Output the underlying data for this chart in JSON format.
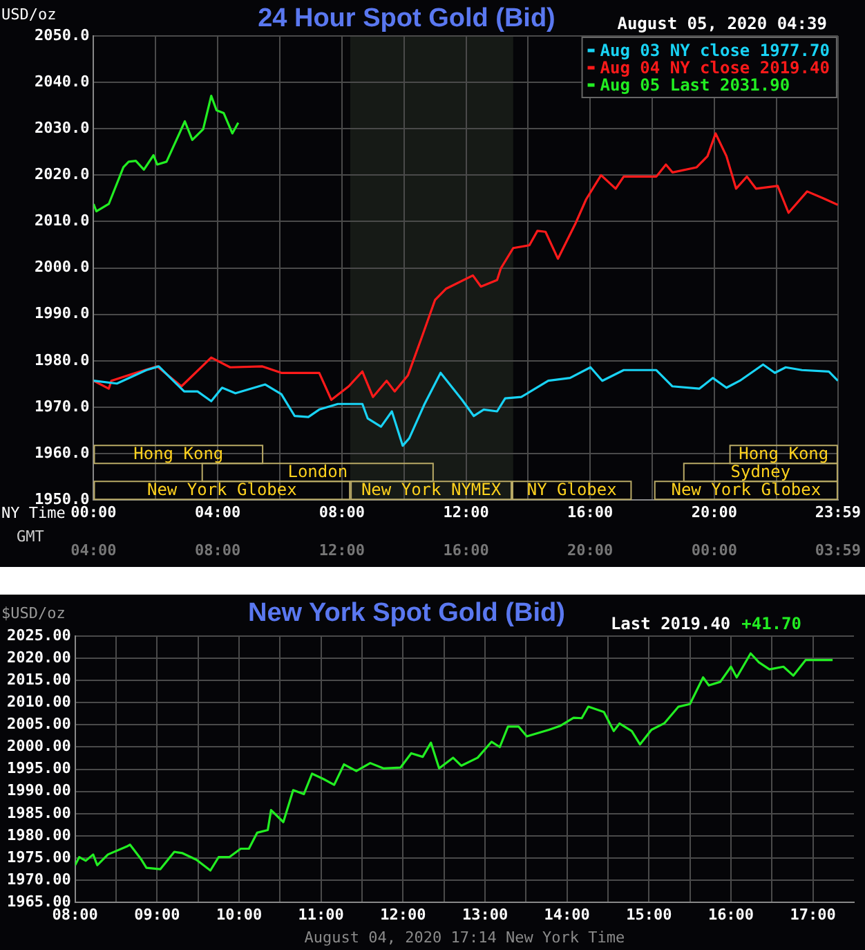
{
  "chart_data": [
    {
      "type": "line",
      "title": "24 Hour Spot Gold (Bid)",
      "subtitle": "August 05, 2020 04:39",
      "ylabel": "USD/oz",
      "xlabel": "NY Time",
      "x2label": "GMT",
      "xlim": [
        0,
        23.98333
      ],
      "xticks": [
        {
          "value": 0,
          "label": "00:00"
        },
        {
          "value": 2,
          "label": null
        },
        {
          "value": 4,
          "label": "04:00"
        },
        {
          "value": 6,
          "label": null
        },
        {
          "value": 8,
          "label": "08:00"
        },
        {
          "value": 10,
          "label": null
        },
        {
          "value": 12,
          "label": "12:00"
        },
        {
          "value": 14,
          "label": null
        },
        {
          "value": 16,
          "label": "16:00"
        },
        {
          "value": 18,
          "label": null
        },
        {
          "value": 20,
          "label": "20:00"
        },
        {
          "value": 22,
          "label": null
        },
        {
          "value": 23.98333,
          "label": "23:59"
        }
      ],
      "x2lim": [
        "2020-08-04T04:00",
        "2020-08-05T03:59"
      ],
      "x2ticks": [
        {
          "value": "2020-08-04T04:00",
          "label": "04:00"
        },
        {
          "value": "2020-08-04T08:00",
          "label": "08:00"
        },
        {
          "value": "2020-08-04T12:00",
          "label": "12:00"
        },
        {
          "value": "2020-08-04T16:00",
          "label": "16:00"
        },
        {
          "value": "2020-08-04T20:00",
          "label": "20:00"
        },
        {
          "value": "2020-08-05T00:00",
          "label": "00:00"
        },
        {
          "value": "2020-08-05T03:59",
          "label": "03:59"
        }
      ],
      "ylim": [
        1950,
        2050
      ],
      "yticks": [
        {
          "value": 1950,
          "label": "1950.0"
        },
        {
          "value": 1960,
          "label": "1960.0"
        },
        {
          "value": 1970,
          "label": "1970.0"
        },
        {
          "value": 1980,
          "label": "1980.0"
        },
        {
          "value": 1990,
          "label": "1990.0"
        },
        {
          "value": 2000,
          "label": "2000.0"
        },
        {
          "value": 2010,
          "label": "2010.0"
        },
        {
          "value": 2020,
          "label": "2020.0"
        },
        {
          "value": 2030,
          "label": "2030.0"
        },
        {
          "value": 2040,
          "label": "2040.0"
        },
        {
          "value": 2050,
          "label": "2050.0"
        }
      ],
      "grid": true,
      "legend": "top right",
      "marker": "none",
      "line_style": "solid",
      "bands": [
        {
          "axis": "x",
          "from": 8.27,
          "to": 13.52,
          "color": "#161a16"
        }
      ],
      "annotations": [
        "Hong Kong",
        "London",
        "New York Globex",
        "New York NYMEX",
        "NY Globex",
        "New York Globex",
        "Sydney",
        "Hong Kong"
      ],
      "series": [
        {
          "name": "Aug 03 NY close 1977.70",
          "color": "#19d3f5",
          "x": [
            0,
            0.75,
            1.7,
            2.1,
            2.92,
            3.35,
            3.79,
            4.14,
            4.57,
            5.53,
            6.05,
            6.48,
            6.92,
            7.27,
            7.87,
            8.66,
            8.83,
            9.26,
            9.61,
            9.96,
            10.17,
            10.65,
            11.18,
            11.87,
            12.25,
            12.57,
            13,
            13.26,
            13.78,
            14.65,
            15.35,
            16.01,
            16.39,
            17.08,
            18.13,
            18.65,
            19.52,
            19.95,
            20.39,
            20.82,
            21.57,
            21.95,
            22.3,
            22.82,
            23.69,
            23.98
          ],
          "values": [
            1975.7,
            1975.1,
            1978,
            1978.8,
            1973.4,
            1973.4,
            1971.3,
            1974.2,
            1973,
            1974.9,
            1972.8,
            1968.1,
            1967.9,
            1969.5,
            1970.7,
            1970.7,
            1967.6,
            1965.8,
            1969.1,
            1961.7,
            1963.3,
            1970.5,
            1977.4,
            1971.6,
            1968.1,
            1969.5,
            1969.1,
            1971.9,
            1972.2,
            1975.7,
            1976.3,
            1978.6,
            1975.7,
            1978,
            1978,
            1974.5,
            1974,
            1976.3,
            1974.2,
            1975.7,
            1979.2,
            1977.4,
            1978.6,
            1978,
            1977.7,
            1975.7
          ]
        },
        {
          "name": "Aug 04 NY close 2019.40",
          "color": "#ff1a1a",
          "x": [
            0,
            0.49,
            0.57,
            1.27,
            2.05,
            2.83,
            3.79,
            4.4,
            5.44,
            6.05,
            7.27,
            7.66,
            8.22,
            8.66,
            9,
            9.44,
            9.7,
            10.13,
            10.57,
            11,
            11.35,
            12.22,
            12.48,
            13,
            13.12,
            13.52,
            14.04,
            14.3,
            14.56,
            14.96,
            15.52,
            15.87,
            16.35,
            16.82,
            17.08,
            18.13,
            18.44,
            18.65,
            19.43,
            19.78,
            20.04,
            20.39,
            20.7,
            21.05,
            21.34,
            22.04,
            22.39,
            22.99,
            23.52,
            23.98
          ],
          "values": [
            1975.7,
            1974,
            1975.7,
            1977.2,
            1978.8,
            1974.5,
            1980.7,
            1978.6,
            1978.8,
            1977.4,
            1977.4,
            1971.6,
            1974.5,
            1977.7,
            1972.2,
            1975.7,
            1973.4,
            1976.9,
            1985,
            1993.1,
            1995.5,
            1998.4,
            1996,
            1997.4,
            1999.9,
            2004.3,
            2004.9,
            2008,
            2007.8,
            2002,
            2009.5,
            2014.8,
            2020,
            2017.1,
            2019.7,
            2019.7,
            2022.3,
            2020.6,
            2021.7,
            2024.1,
            2029,
            2024.1,
            2017.1,
            2019.7,
            2017.1,
            2017.7,
            2011.9,
            2016.5,
            2015,
            2013.6
          ]
        },
        {
          "name": "Aug 05 Last 2031.90",
          "color": "#22ee22",
          "x": [
            0,
            0.09,
            0.49,
            0.96,
            1.13,
            1.36,
            1.62,
            1.93,
            2.05,
            2.35,
            2.94,
            3.18,
            3.53,
            3.79,
            3.96,
            4.19,
            4.47,
            4.66
          ],
          "values": [
            2013.8,
            2012.2,
            2013.8,
            2021.7,
            2022.9,
            2023.1,
            2021.2,
            2024.3,
            2022.3,
            2022.9,
            2031.6,
            2027.6,
            2029.9,
            2037.1,
            2034,
            2033.4,
            2029,
            2031.3
          ]
        }
      ]
    },
    {
      "type": "line",
      "title": "New York Spot Gold (Bid)",
      "ylabel": "$USD/oz",
      "xlabel": "August 04, 2020 17:14 New York Time",
      "annotations": [
        "Last 2019.40",
        "+41.70"
      ],
      "xlim": [
        8,
        17.5
      ],
      "xticks": [
        {
          "value": 8,
          "label": "08:00"
        },
        {
          "value": 8.5,
          "label": null
        },
        {
          "value": 9,
          "label": "09:00"
        },
        {
          "value": 9.5,
          "label": null
        },
        {
          "value": 10,
          "label": "10:00"
        },
        {
          "value": 10.5,
          "label": null
        },
        {
          "value": 11,
          "label": "11:00"
        },
        {
          "value": 11.5,
          "label": null
        },
        {
          "value": 12,
          "label": "12:00"
        },
        {
          "value": 12.5,
          "label": null
        },
        {
          "value": 13,
          "label": "13:00"
        },
        {
          "value": 13.5,
          "label": null
        },
        {
          "value": 14,
          "label": "14:00"
        },
        {
          "value": 14.5,
          "label": null
        },
        {
          "value": 15,
          "label": "15:00"
        },
        {
          "value": 15.5,
          "label": null
        },
        {
          "value": 16,
          "label": "16:00"
        },
        {
          "value": 16.5,
          "label": null
        },
        {
          "value": 17,
          "label": "17:00"
        }
      ],
      "ylim": [
        1965,
        2025
      ],
      "yticks": [
        {
          "value": 1965,
          "label": "1965.00"
        },
        {
          "value": 1970,
          "label": "1970.00"
        },
        {
          "value": 1975,
          "label": "1975.00"
        },
        {
          "value": 1980,
          "label": "1980.00"
        },
        {
          "value": 1985,
          "label": "1985.00"
        },
        {
          "value": 1990,
          "label": "1990.00"
        },
        {
          "value": 1995,
          "label": "1995.00"
        },
        {
          "value": 2000,
          "label": "2000.00"
        },
        {
          "value": 2005,
          "label": "2005.00"
        },
        {
          "value": 2010,
          "label": "2010.00"
        },
        {
          "value": 2015,
          "label": "2015.00"
        },
        {
          "value": 2020,
          "label": "2020.00"
        },
        {
          "value": 2025,
          "label": "2025.00"
        }
      ],
      "grid": true,
      "marker": "none",
      "line_style": "solid",
      "series": [
        {
          "color": "#22ee22",
          "x": [
            8,
            8.05,
            8.13,
            8.22,
            8.27,
            8.4,
            8.64,
            8.67,
            8.81,
            8.87,
            9.04,
            9.21,
            9.31,
            9.48,
            9.65,
            9.75,
            9.88,
            10.02,
            10.12,
            10.22,
            10.35,
            10.39,
            10.54,
            10.66,
            10.79,
            10.89,
            11.03,
            11.16,
            11.28,
            11.43,
            11.6,
            11.76,
            11.97,
            12.1,
            12.24,
            12.34,
            12.44,
            12.61,
            12.71,
            12.91,
            13.08,
            13.18,
            13.28,
            13.41,
            13.51,
            13.78,
            13.92,
            14.08,
            14.18,
            14.26,
            14.45,
            14.57,
            14.64,
            14.79,
            14.89,
            15.03,
            15.19,
            15.36,
            15.5,
            15.66,
            15.73,
            15.87,
            16,
            16.07,
            16.24,
            16.34,
            16.47,
            16.64,
            16.76,
            16.91,
            17.01,
            17.24
          ],
          "values": [
            1973.4,
            1975.2,
            1974.4,
            1975.8,
            1973.4,
            1975.8,
            1977.7,
            1978,
            1974.6,
            1972.8,
            1972.5,
            1976.4,
            1976.1,
            1974.6,
            1972.2,
            1975.2,
            1975.2,
            1977.1,
            1977.1,
            1980.7,
            1981.3,
            1985.8,
            1983.1,
            1990.3,
            1989.4,
            1994,
            1992.8,
            1991.5,
            1996.1,
            1994.6,
            1996.4,
            1995.2,
            1995.4,
            1998.6,
            1997.8,
            2001,
            1995.2,
            1997.6,
            1995.8,
            1997.6,
            2001.2,
            2000,
            2004.6,
            2004.6,
            2002.4,
            2003.9,
            2004.8,
            2006.6,
            2006.5,
            2009.1,
            2007.9,
            2003.6,
            2005.3,
            2003.6,
            2000.6,
            2003.9,
            2005.4,
            2009.1,
            2009.7,
            2015.7,
            2013.9,
            2014.7,
            2018.1,
            2015.7,
            2021.1,
            2019.1,
            2017.5,
            2018.1,
            2016.1,
            2019.6,
            2019.6,
            2019.6
          ]
        }
      ]
    }
  ]
}
